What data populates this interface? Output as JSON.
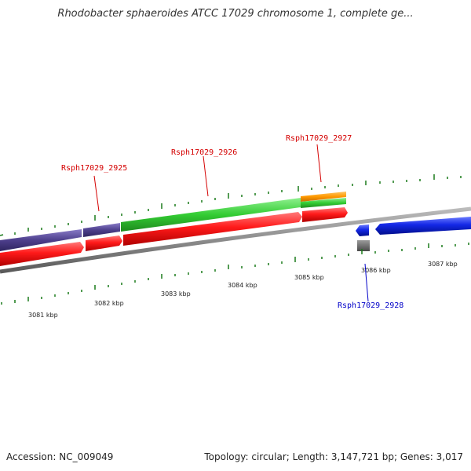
{
  "title": "Rhodobacter sphaeroides ATCC 17029 chromosome 1, complete ge...",
  "footer": {
    "accession": "Accession: NC_009049",
    "summary": "Topology: circular; Length: 3,147,721 bp; Genes: 3,017"
  },
  "ruler": {
    "unit": "kbp",
    "labels": [
      "3081 kbp",
      "3082 kbp",
      "3083 kbp",
      "3084 kbp",
      "3085 kbp",
      "3086 kbp",
      "3087 kbp"
    ]
  },
  "genes": [
    {
      "name": "Rsph17029_2925",
      "strand": "forward",
      "color": "#d40000"
    },
    {
      "name": "Rsph17029_2926",
      "strand": "forward",
      "color": "#d40000"
    },
    {
      "name": "Rsph17029_2927",
      "strand": "forward",
      "color": "#d40000"
    },
    {
      "name": "Rsph17029_2928",
      "strand": "reverse",
      "color": "#0000c8"
    }
  ],
  "colors": {
    "cds_forward": "#ff1a1a",
    "cds_reverse": "#1428e6",
    "cog_purple": "#4d3f8c",
    "cog_green": "#33cc33",
    "cog_orange": "#ff9900",
    "backbone": "#8c8c8c",
    "gap_feature": "#6e6e6e",
    "ticks": "#1a7a1a"
  }
}
